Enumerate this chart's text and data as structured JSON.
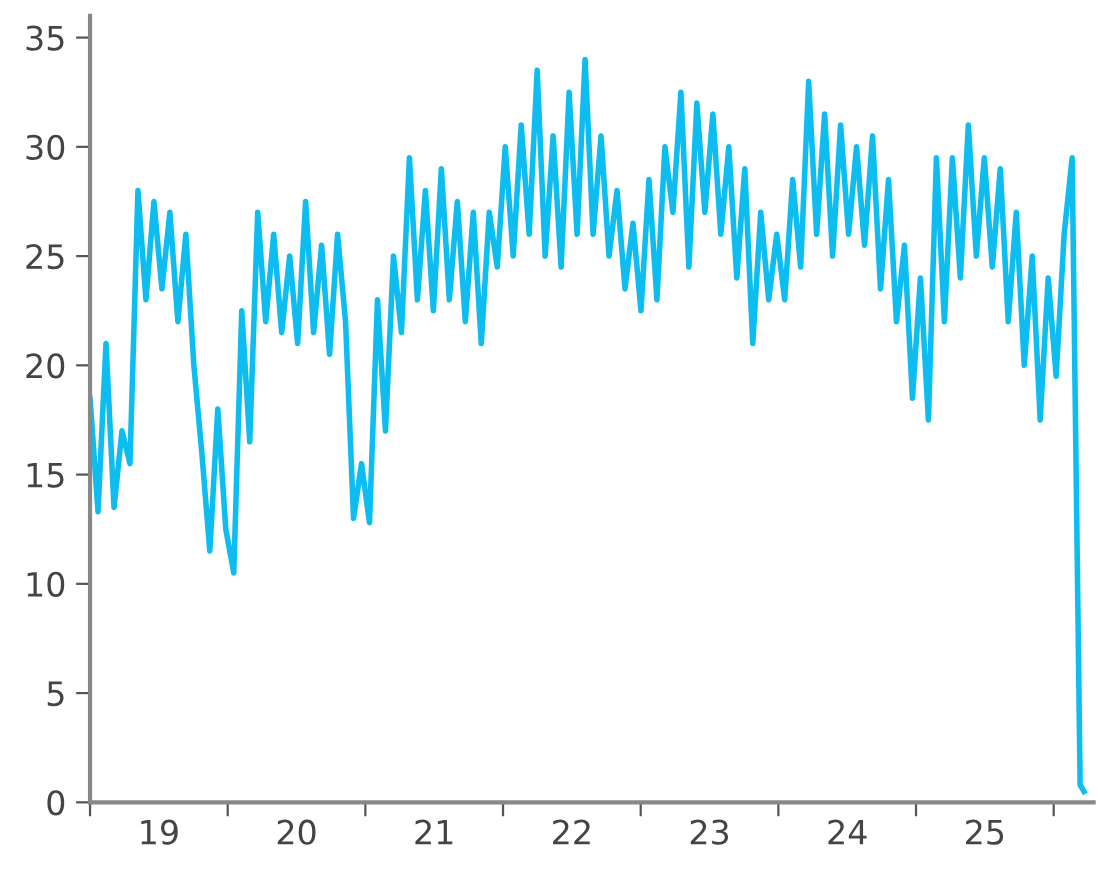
{
  "chart_data": {
    "type": "line",
    "x": [
      19,
      19.058,
      19.116,
      19.174,
      19.232,
      19.29,
      19.348,
      19.406,
      19.464,
      19.522,
      19.58,
      19.638,
      19.696,
      19.754,
      19.812,
      19.87,
      19.928,
      19.986,
      20.044,
      20.102,
      20.16,
      20.218,
      20.276,
      20.334,
      20.392,
      20.45,
      20.508,
      20.566,
      20.624,
      20.682,
      20.74,
      20.798,
      20.856,
      20.914,
      20.972,
      21.03,
      21.088,
      21.146,
      21.204,
      21.262,
      21.32,
      21.378,
      21.436,
      21.494,
      21.552,
      21.61,
      21.668,
      21.726,
      21.784,
      21.842,
      21.9,
      21.958,
      22.016,
      22.074,
      22.132,
      22.19,
      22.248,
      22.306,
      22.364,
      22.422,
      22.48,
      22.538,
      22.596,
      22.654,
      22.712,
      22.77,
      22.828,
      22.886,
      22.944,
      23.002,
      23.06,
      23.118,
      23.176,
      23.234,
      23.292,
      23.35,
      23.408,
      23.466,
      23.524,
      23.582,
      23.64,
      23.698,
      23.756,
      23.814,
      23.872,
      23.93,
      23.988,
      24.046,
      24.104,
      24.162,
      24.22,
      24.278,
      24.336,
      24.394,
      24.452,
      24.51,
      24.568,
      24.626,
      24.684,
      24.742,
      24.8,
      24.858,
      24.916,
      24.974,
      25.032,
      25.09,
      25.148,
      25.206,
      25.264,
      25.322,
      25.38,
      25.438,
      25.496,
      25.554,
      25.612,
      25.67,
      25.728,
      25.786,
      25.844,
      25.902,
      25.96,
      26.018,
      26.076,
      26.134,
      26.192,
      26.22
    ],
    "series": [
      {
        "color": "#0dbdf0",
        "values": [
          18.5,
          13.3,
          21,
          13.5,
          17,
          15.5,
          28,
          23,
          27.5,
          23.5,
          27,
          22,
          26,
          20,
          16,
          11.5,
          18,
          12.5,
          10.5,
          22.5,
          16.5,
          27,
          22,
          26,
          21.5,
          25,
          21,
          27.5,
          21.5,
          25.5,
          20.5,
          26,
          22,
          13,
          15.5,
          12.8,
          23,
          17,
          25,
          21.5,
          29.5,
          23,
          28,
          22.5,
          29,
          23,
          27.5,
          22,
          27,
          21,
          27,
          24.5,
          30,
          25,
          31,
          26,
          33.5,
          25,
          30.5,
          24.5,
          32.5,
          26,
          34,
          26,
          30.5,
          25,
          28,
          23.5,
          26.5,
          22.5,
          28.5,
          23,
          30,
          27,
          32.5,
          24.5,
          32,
          27,
          31.5,
          26,
          30,
          24,
          29,
          21,
          27,
          23,
          26,
          23,
          28.5,
          24.5,
          33,
          26,
          31.5,
          25,
          31,
          26,
          30,
          25.5,
          30.5,
          23.5,
          28.5,
          22,
          25.5,
          18.5,
          24,
          17.5,
          29.5,
          22,
          29.5,
          24,
          31,
          25,
          29.5,
          24.5,
          29,
          22,
          27,
          20,
          25,
          17.5,
          24,
          19.5,
          26,
          29.5,
          0.8,
          0.5
        ]
      }
    ],
    "xlim": [
      19,
      26.29
    ],
    "xticks": [
      {
        "value": 19,
        "label": null
      },
      {
        "value": 19.5,
        "label": "19"
      },
      {
        "value": 20,
        "label": null
      },
      {
        "value": 20.5,
        "label": "20"
      },
      {
        "value": 21,
        "label": null
      },
      {
        "value": 21.5,
        "label": "21"
      },
      {
        "value": 22,
        "label": null
      },
      {
        "value": 22.5,
        "label": "22"
      },
      {
        "value": 23,
        "label": null
      },
      {
        "value": 23.5,
        "label": "23"
      },
      {
        "value": 24,
        "label": null
      },
      {
        "value": 24.5,
        "label": "24"
      },
      {
        "value": 25,
        "label": null
      },
      {
        "value": 25.5,
        "label": "25"
      },
      {
        "value": 26,
        "label": null
      }
    ],
    "ylim": [
      0,
      36
    ],
    "yticks": [
      0,
      5,
      10,
      15,
      20,
      25,
      30,
      35
    ],
    "grid": false
  }
}
